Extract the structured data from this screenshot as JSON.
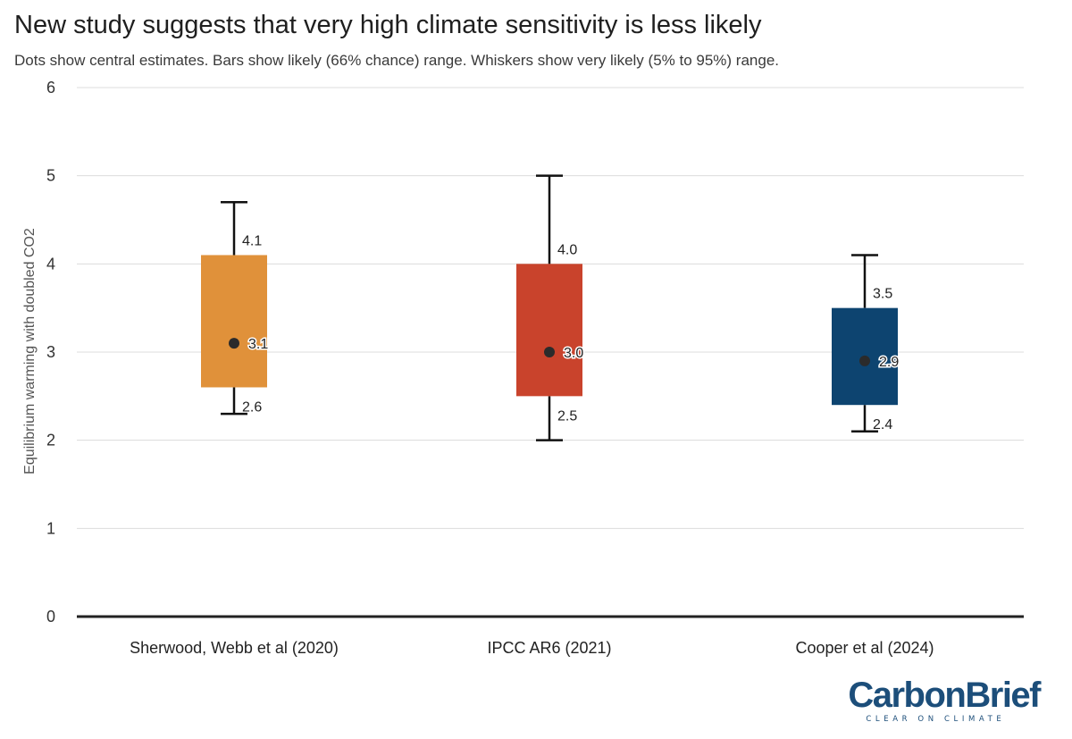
{
  "header": {
    "title": "New study suggests that very high climate sensitivity is less likely",
    "subtitle": "Dots show central estimates. Bars show likely (66% chance) range. Whiskers show very likely (5% to 95%) range."
  },
  "logo": {
    "name": "CarbonBrief",
    "tagline": "CLEAR ON CLIMATE"
  },
  "chart_data": {
    "type": "box",
    "title": "New study suggests that very high climate sensitivity is less likely",
    "subtitle": "Dots show central estimates. Bars show likely (66% chance) range. Whiskers show very likely (5% to 95%) range.",
    "ylabel": "Equilibrium warming with doubled CO2",
    "xlabel": "",
    "ylim": [
      0,
      6
    ],
    "yticks": [
      "0",
      "1",
      "2",
      "3",
      "4",
      "5",
      "6"
    ],
    "grid": true,
    "legend": "none",
    "categories": [
      "Sherwood, Webb et al (2020)",
      "IPCC AR6 (2021)",
      "Cooper et al (2024)"
    ],
    "series": [
      {
        "category": "Sherwood, Webb et al (2020)",
        "whisker_low": 2.3,
        "likely_low": 2.6,
        "central": 3.1,
        "likely_high": 4.1,
        "whisker_high": 4.7,
        "labels": {
          "low": "2.6",
          "central": "3.1",
          "high": "4.1"
        },
        "color": "#e0913a"
      },
      {
        "category": "IPCC AR6 (2021)",
        "whisker_low": 2.0,
        "likely_low": 2.5,
        "central": 3.0,
        "likely_high": 4.0,
        "whisker_high": 5.0,
        "labels": {
          "low": "2.5",
          "central": "3.0",
          "high": "4.0"
        },
        "color": "#c9432c"
      },
      {
        "category": "Cooper et al (2024)",
        "whisker_low": 2.1,
        "likely_low": 2.4,
        "central": 2.9,
        "likely_high": 3.5,
        "whisker_high": 4.1,
        "labels": {
          "low": "2.4",
          "central": "2.9",
          "high": "3.5"
        },
        "color": "#0d4470"
      }
    ]
  }
}
